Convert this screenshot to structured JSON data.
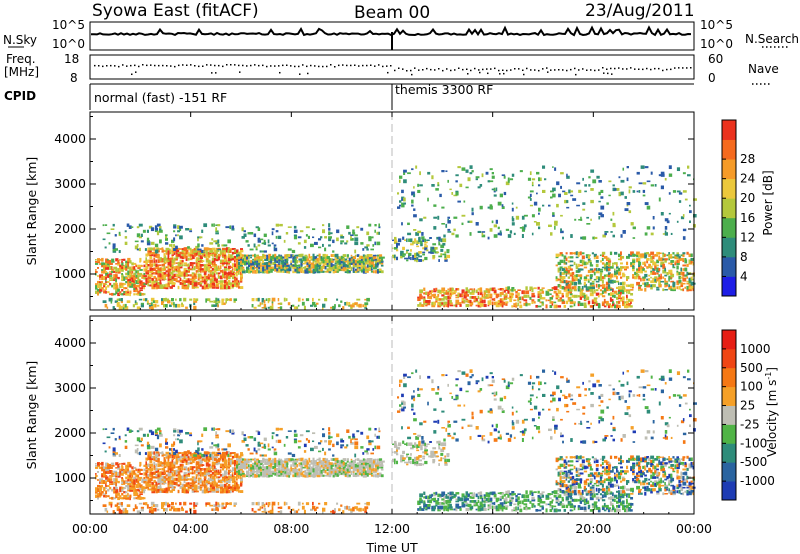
{
  "header": {
    "station": "Syowa East (fitACF)",
    "beam": "Beam 00",
    "date": "23/Aug/2011"
  },
  "strip": {
    "nsky_label": "N.Sky",
    "nsky_top": "10^5",
    "nsky_bottom": "10^0",
    "nsearch_label": "N.Search",
    "freq_label_1": "Freq.",
    "freq_label_2": "[MHz]",
    "freq_top": "18",
    "freq_bottom": "8",
    "nave_top": "60",
    "nave_bottom": "0",
    "nave_label": "Nave",
    "cpid_label": "CPID",
    "cpid_modes": [
      {
        "text": "normal (fast) -151 RF",
        "start_hour": 0
      },
      {
        "text": "themis 3300 RF",
        "start_hour": 12
      }
    ]
  },
  "chart_data": [
    {
      "type": "heatmap",
      "title": "Power",
      "ylabel": "Slant Range [km]",
      "xlabel": "",
      "x_unit": "hours UT",
      "xlim": [
        0,
        24
      ],
      "ylim": [
        200,
        4600
      ],
      "yticks": [
        1000,
        2000,
        3000,
        4000
      ],
      "xtick_labels": [
        "00:00",
        "04:00",
        "08:00",
        "12:00",
        "16:00",
        "20:00",
        "00:00"
      ],
      "xticks": [
        0,
        4,
        8,
        12,
        16,
        20,
        24
      ],
      "colorbar": {
        "label": "Power [dB]",
        "ticks": [
          "4",
          "8",
          "12",
          "16",
          "20",
          "24",
          "28"
        ],
        "colors": [
          "#1e1ee6",
          "#2a5aa8",
          "#2e8c7a",
          "#4cae4c",
          "#b4c83c",
          "#ebc83c",
          "#f59b28",
          "#f56a1e",
          "#eb321e"
        ]
      }
    },
    {
      "type": "heatmap",
      "title": "Velocity",
      "ylabel": "Slant Range [km]",
      "xlabel": "Time UT",
      "x_unit": "hours UT",
      "xlim": [
        0,
        24
      ],
      "ylim": [
        200,
        4600
      ],
      "yticks": [
        1000,
        2000,
        3000,
        4000
      ],
      "xtick_labels": [
        "00:00",
        "04:00",
        "08:00",
        "12:00",
        "16:00",
        "20:00",
        "00:00"
      ],
      "xticks": [
        0,
        4,
        8,
        12,
        16,
        20,
        24
      ],
      "colorbar": {
        "label": "Velocity [m s",
        "label_sup": "-1",
        "label_end": "]",
        "ticks": [
          "1000",
          "500",
          "100",
          "25",
          "-25",
          "-100",
          "-500",
          "-1000"
        ],
        "colors": [
          "#1e3cb4",
          "#2a64a0",
          "#2e8c7a",
          "#50b446",
          "#bebeb4",
          "#f5a028",
          "#f57814",
          "#f04614",
          "#e61e14"
        ]
      }
    }
  ]
}
